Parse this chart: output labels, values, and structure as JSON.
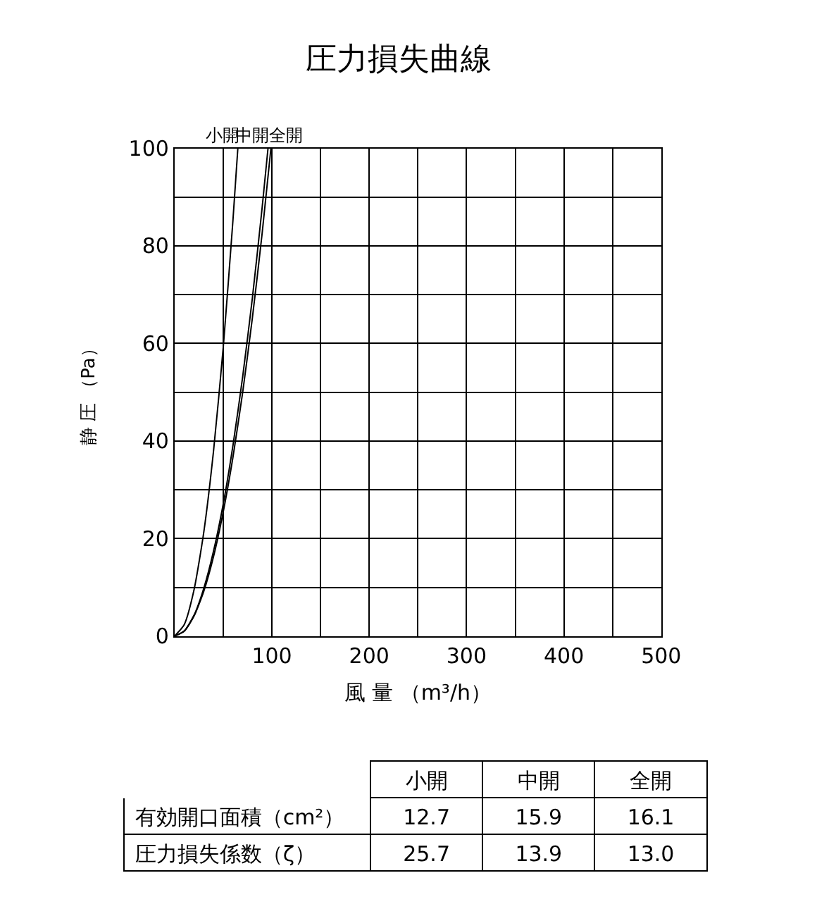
{
  "chart_data": [
    {
      "type": "line",
      "title": "圧力損失曲線",
      "xlabel": "風 量 （m³/h）",
      "ylabel": "静 圧 （Pa）",
      "series": [
        {
          "name": "小開",
          "color": "#000000",
          "x": [
            0,
            10,
            20,
            30,
            40,
            50,
            60,
            65
          ],
          "values": [
            0,
            2.4,
            9.5,
            21.3,
            37.9,
            59.2,
            85.3,
            100
          ]
        },
        {
          "name": "中開",
          "color": "#000000",
          "x": [
            0,
            10,
            20,
            30,
            40,
            50,
            60,
            70,
            80,
            90,
            96
          ],
          "values": [
            0,
            1.1,
            4.3,
            9.8,
            17.4,
            27.1,
            39.1,
            53.2,
            69.4,
            87.9,
            100
          ]
        },
        {
          "name": "全開",
          "color": "#000000",
          "x": [
            0,
            10,
            20,
            30,
            40,
            50,
            60,
            70,
            80,
            90,
            99
          ],
          "values": [
            0,
            1.0,
            4.1,
            9.2,
            16.3,
            25.5,
            36.7,
            50,
            65.3,
            82.6,
            100
          ]
        }
      ],
      "xlim": [
        0,
        500
      ],
      "ylim": [
        0,
        100
      ],
      "xticks": [
        {
          "value": 0,
          "label": null
        },
        {
          "value": 50,
          "label": null
        },
        100,
        {
          "value": 150,
          "label": null
        },
        200,
        {
          "value": 250,
          "label": null
        },
        300,
        {
          "value": 350,
          "label": null
        },
        400,
        {
          "value": 450,
          "label": null
        },
        500
      ],
      "yticks": [
        0,
        {
          "value": 10,
          "label": null
        },
        20,
        {
          "value": 30,
          "label": null
        },
        40,
        {
          "value": 50,
          "label": null
        },
        60,
        {
          "value": 70,
          "label": null
        },
        80,
        {
          "value": 90,
          "label": null
        },
        100
      ],
      "grid": true,
      "marker": "none",
      "line_style": "solid"
    },
    {
      "type": "other",
      "categories": [
        "小開",
        "中開",
        "全開"
      ],
      "y_categories": [
        "有効開口面積（cm²）",
        "圧力損失係数（ζ）"
      ],
      "cell_labels": [
        [
          "12.7",
          "15.9",
          "16.1"
        ],
        [
          "25.7",
          "13.9",
          "13.0"
        ]
      ]
    }
  ]
}
